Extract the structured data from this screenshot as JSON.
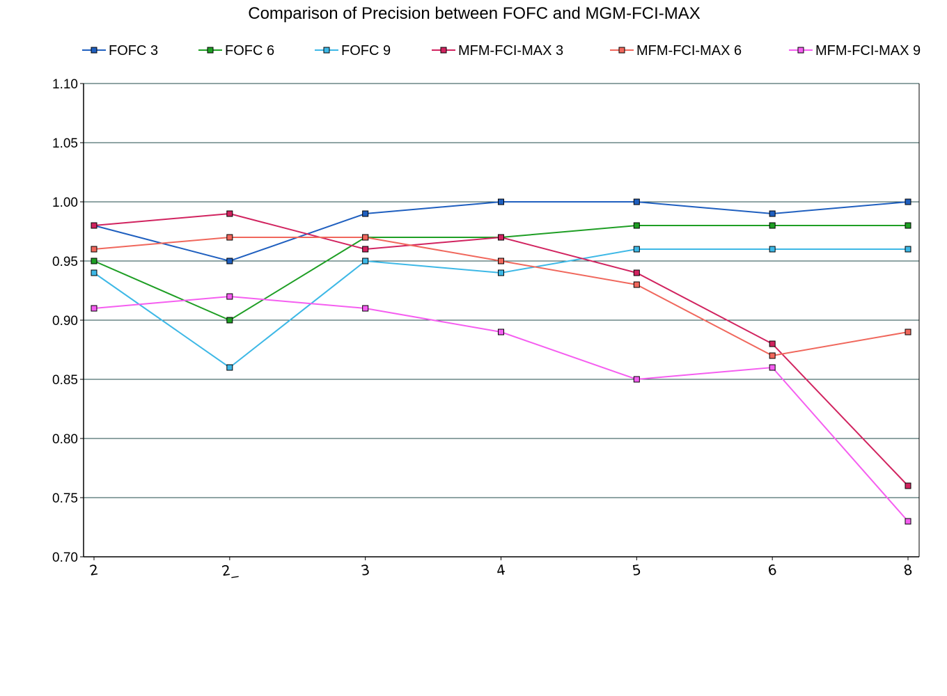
{
  "chart_data": {
    "type": "line",
    "title": "Comparison of Precision between FOFC and MGM-FCI-MAX",
    "xlabel": "",
    "ylabel": "",
    "categories": [
      "2",
      "2_",
      "3",
      "4",
      "5",
      "6",
      "8"
    ],
    "ylim": [
      0.7,
      1.1
    ],
    "yticks": [
      "1.10",
      "1.05",
      "1.00",
      "0.95",
      "0.90",
      "0.85",
      "0.80",
      "0.75",
      "0.70"
    ],
    "ytick_values": [
      1.1,
      1.05,
      1.0,
      0.95,
      0.9,
      0.85,
      0.8,
      0.75,
      0.7
    ],
    "grid": "horizontal",
    "legend_position": "top",
    "series": [
      {
        "name": "FOFC 3",
        "color": "#1f5fbf",
        "values": [
          0.98,
          0.95,
          0.99,
          1.0,
          1.0,
          0.99,
          1.0
        ]
      },
      {
        "name": "FOFC 6",
        "color": "#1e9e24",
        "values": [
          0.95,
          0.9,
          0.97,
          0.97,
          0.98,
          0.98,
          0.98
        ]
      },
      {
        "name": "FOFC 9",
        "color": "#3db8e6",
        "values": [
          0.94,
          0.86,
          0.95,
          0.94,
          0.96,
          0.96,
          0.96
        ]
      },
      {
        "name": "MFM-FCI-MAX 3",
        "color": "#d1235f",
        "values": [
          0.98,
          0.99,
          0.96,
          0.97,
          0.94,
          0.88,
          0.76
        ]
      },
      {
        "name": "MFM-FCI-MAX 6",
        "color": "#f0675c",
        "values": [
          0.96,
          0.97,
          0.97,
          0.95,
          0.93,
          0.87,
          0.89
        ]
      },
      {
        "name": "MFM-FCI-MAX 9",
        "color": "#f55ef0",
        "values": [
          0.91,
          0.92,
          0.91,
          0.89,
          0.85,
          0.86,
          0.73
        ]
      }
    ],
    "gridline_color": "#1f4a4a",
    "axis_color": "#000000"
  }
}
